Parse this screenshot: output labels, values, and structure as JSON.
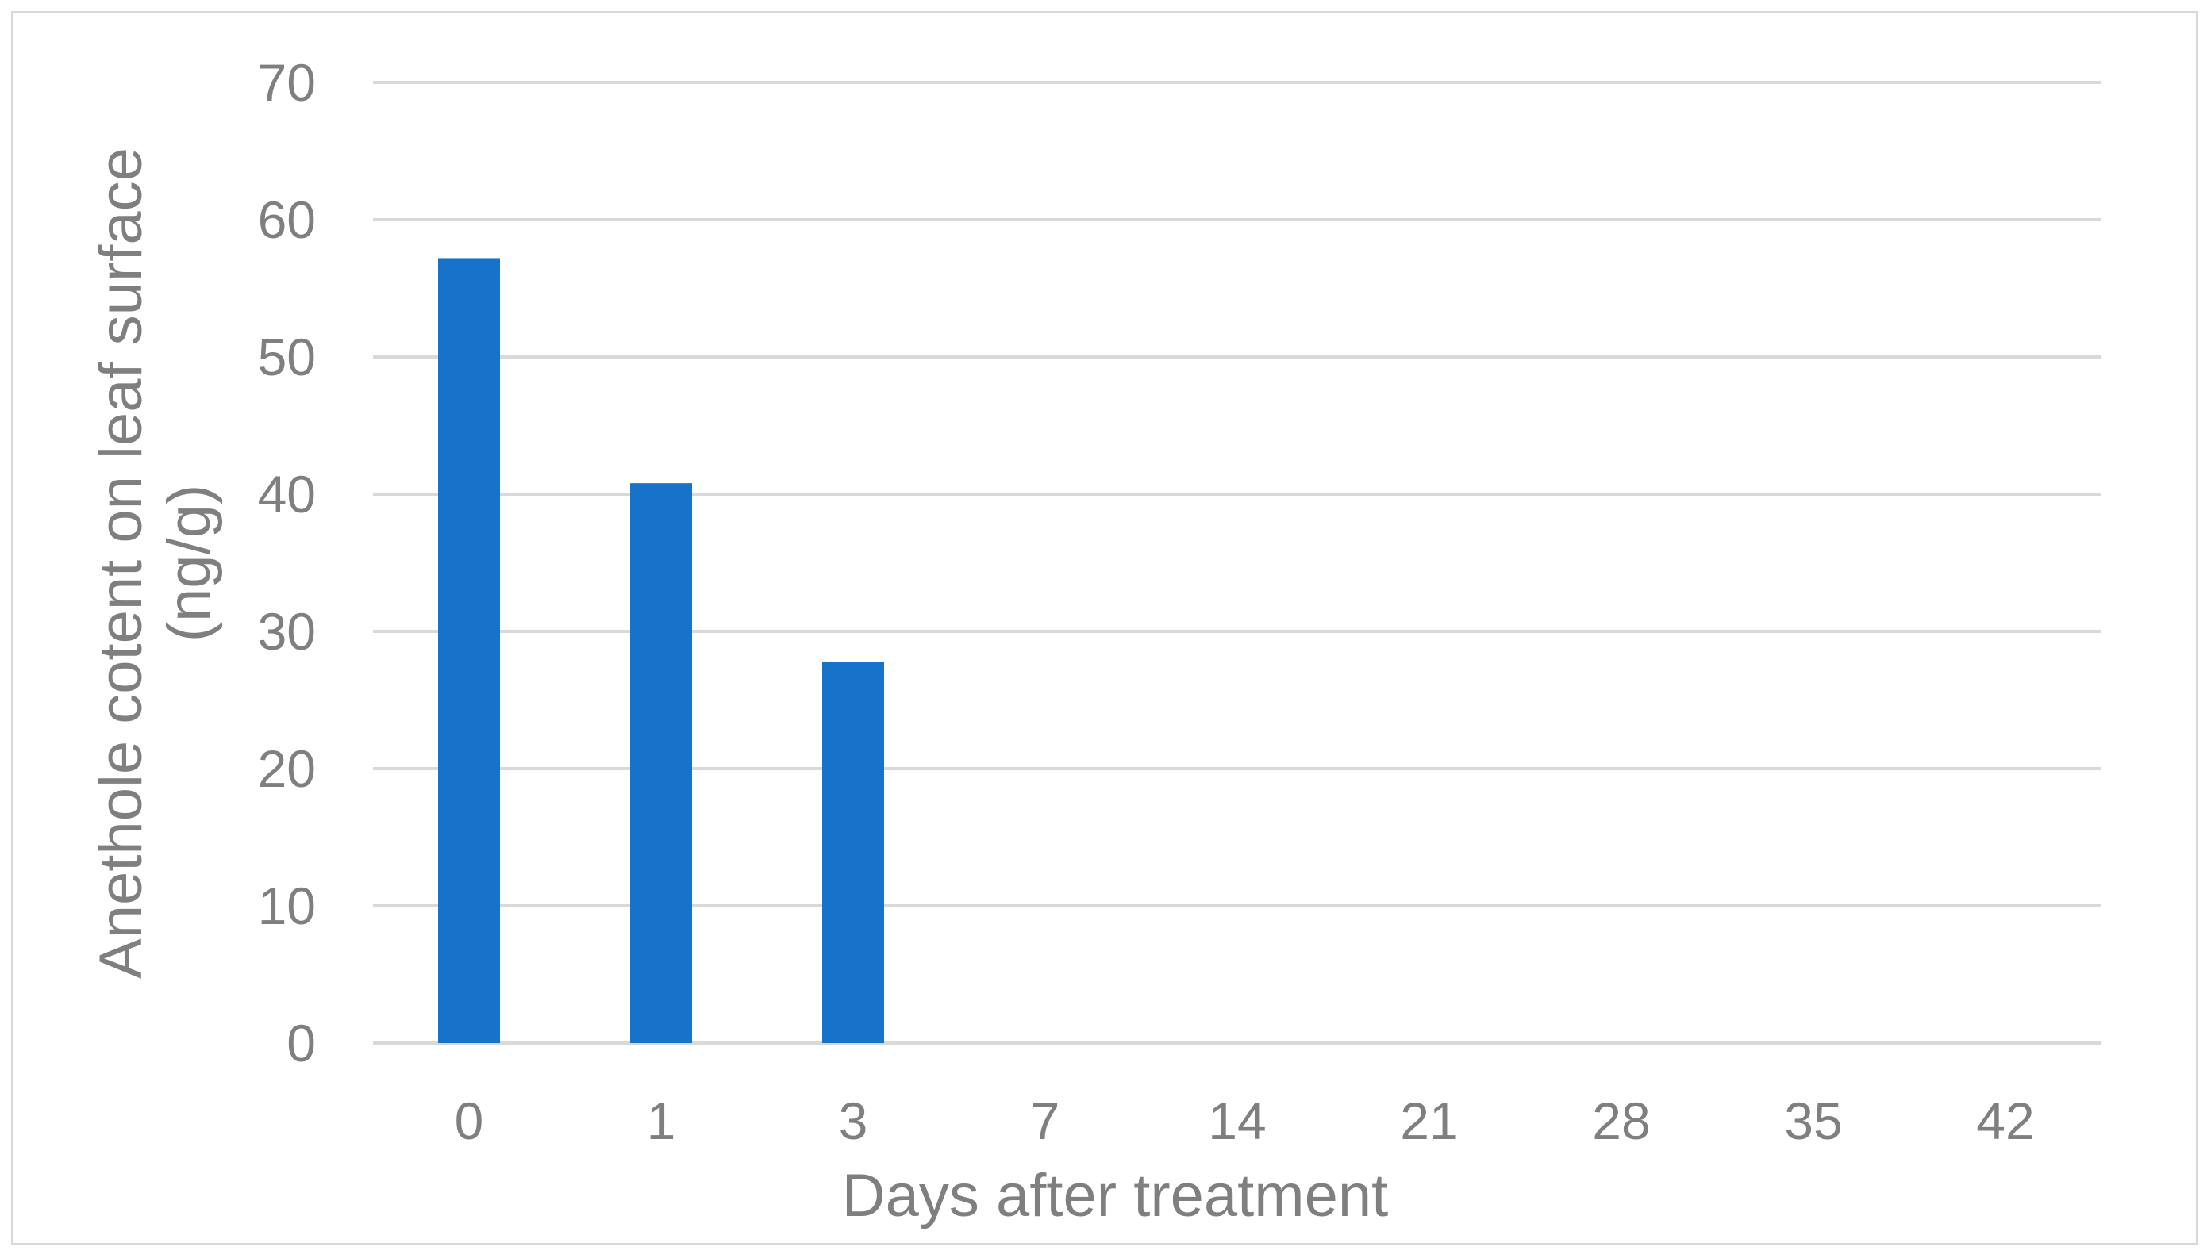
{
  "chart_data": {
    "type": "bar",
    "categories": [
      "0",
      "1",
      "3",
      "7",
      "14",
      "21",
      "28",
      "35",
      "42"
    ],
    "values": [
      57.2,
      40.8,
      27.8,
      0,
      0,
      0,
      0,
      0,
      0
    ],
    "title": "",
    "xlabel": "Days after treatment",
    "ylabel_lines": [
      "Anethole cotent on leaf surface",
      "(ng/g)"
    ],
    "ylim": [
      0,
      70
    ],
    "yticks": [
      "0",
      "10",
      "20",
      "30",
      "40",
      "50",
      "60",
      "70"
    ],
    "grid": true,
    "legend": "none",
    "bar_color": "#1772c9",
    "grid_color": "#d9d9d9"
  }
}
